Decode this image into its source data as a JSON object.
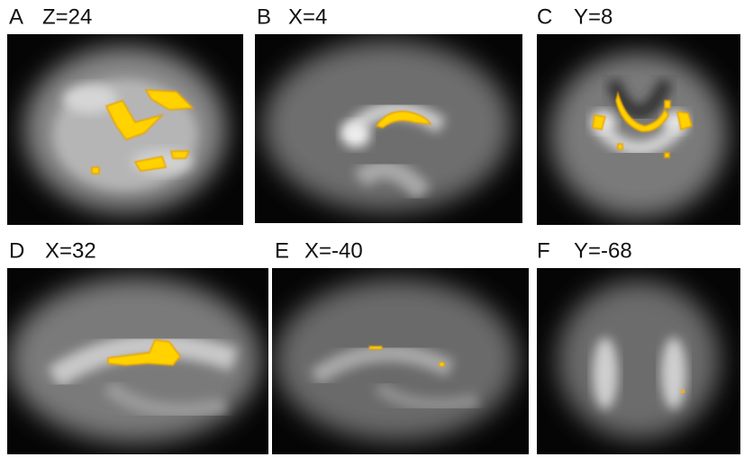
{
  "panels": [
    {
      "letter": "A",
      "label": "Z=24"
    },
    {
      "letter": "B",
      "label": "X=4"
    },
    {
      "letter": "C",
      "label": "Y=8"
    },
    {
      "letter": "D",
      "label": "X=32"
    },
    {
      "letter": "E",
      "label": "X=-40"
    },
    {
      "letter": "F",
      "label": "Y=-68"
    }
  ]
}
